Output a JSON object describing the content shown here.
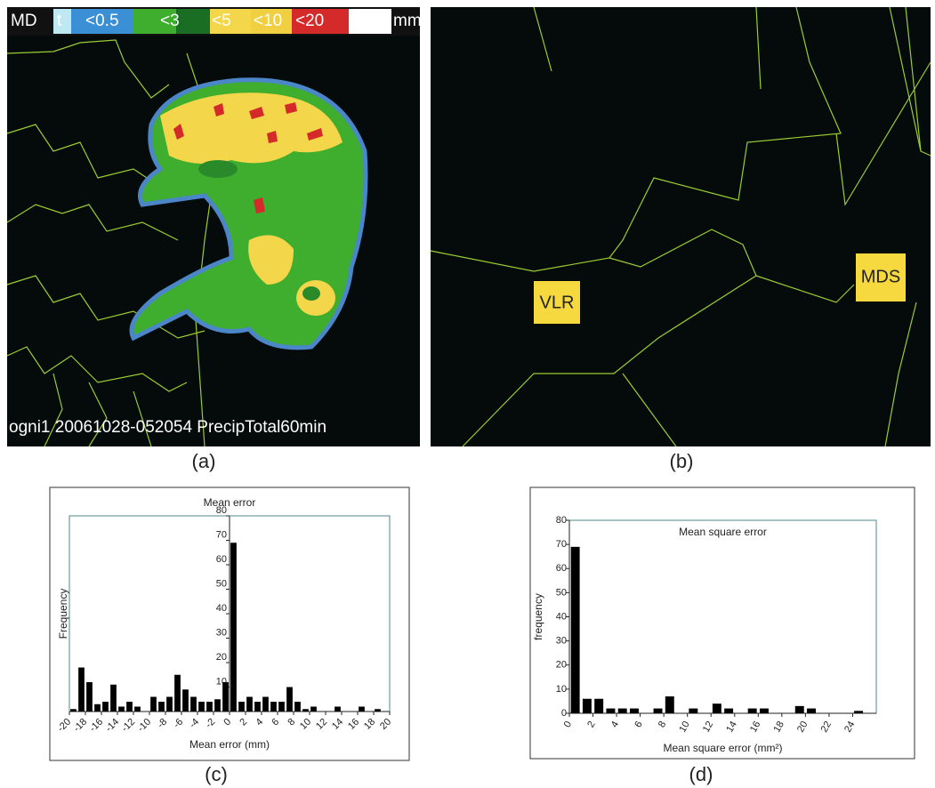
{
  "panel_a": {
    "legend": [
      "MD",
      "t",
      "<0.5",
      "<3",
      "<5",
      "<10",
      "<20",
      "mm"
    ],
    "footer": "ogni1 20061028-052054 PrecipTotal60min"
  },
  "panel_b": {
    "labels": [
      "VLR",
      "MDS"
    ]
  },
  "captions": [
    "(a)",
    "(b)",
    "(c)",
    "(d)"
  ],
  "chart_data": [
    {
      "type": "histogram",
      "title": "Mean error",
      "xlabel": "Mean error (mm)",
      "ylabel": "Frequency",
      "bins": [
        -20,
        -19,
        -18,
        -17,
        -16,
        -15,
        -14,
        -13,
        -12,
        -11,
        -10,
        -9,
        -8,
        -7,
        -6,
        -5,
        -4,
        -3,
        -2,
        -1,
        0,
        1,
        2,
        3,
        4,
        5,
        6,
        7,
        8,
        9,
        10,
        11,
        12,
        13,
        14,
        15,
        16,
        17,
        18,
        19,
        20
      ],
      "values": [
        1,
        18,
        12,
        3,
        4,
        11,
        2,
        4,
        2,
        0,
        6,
        4,
        6,
        15,
        9,
        6,
        4,
        4,
        5,
        12,
        69,
        4,
        6,
        4,
        6,
        4,
        4,
        10,
        4,
        1,
        2,
        0,
        0,
        2,
        0,
        0,
        2,
        0,
        1,
        0
      ],
      "color": "#000000",
      "xlim": [
        -20,
        20
      ],
      "ylim": [
        0,
        80
      ],
      "xticks": [
        -20,
        -18,
        -16,
        -14,
        -12,
        -10,
        -8,
        -6,
        -4,
        -2,
        0,
        2,
        4,
        6,
        8,
        10,
        12,
        14,
        16,
        18,
        20
      ],
      "yticks": [
        10,
        20,
        30,
        40,
        50,
        60,
        70,
        80
      ]
    },
    {
      "type": "histogram",
      "title": "Mean square error",
      "xlabel": "Mean square error (mm²)",
      "ylabel": "frequency",
      "bins": [
        0,
        1,
        2,
        3,
        4,
        5,
        6,
        7,
        8,
        9,
        10,
        11,
        12,
        13,
        14,
        15,
        16,
        17,
        18,
        19,
        20,
        21,
        22,
        23,
        24,
        25,
        26
      ],
      "values": [
        69,
        6,
        6,
        2,
        2,
        2,
        0,
        2,
        7,
        0,
        2,
        0,
        4,
        2,
        0,
        2,
        2,
        0,
        0,
        3,
        2,
        0,
        0,
        0,
        1,
        0
      ],
      "color": "#000000",
      "xlim": [
        0,
        26
      ],
      "ylim": [
        0,
        80
      ],
      "xticks": [
        0,
        2,
        4,
        6,
        8,
        10,
        12,
        14,
        16,
        18,
        20,
        22,
        24
      ],
      "yticks": [
        0,
        10,
        20,
        30,
        40,
        50,
        60,
        70,
        80
      ]
    }
  ]
}
